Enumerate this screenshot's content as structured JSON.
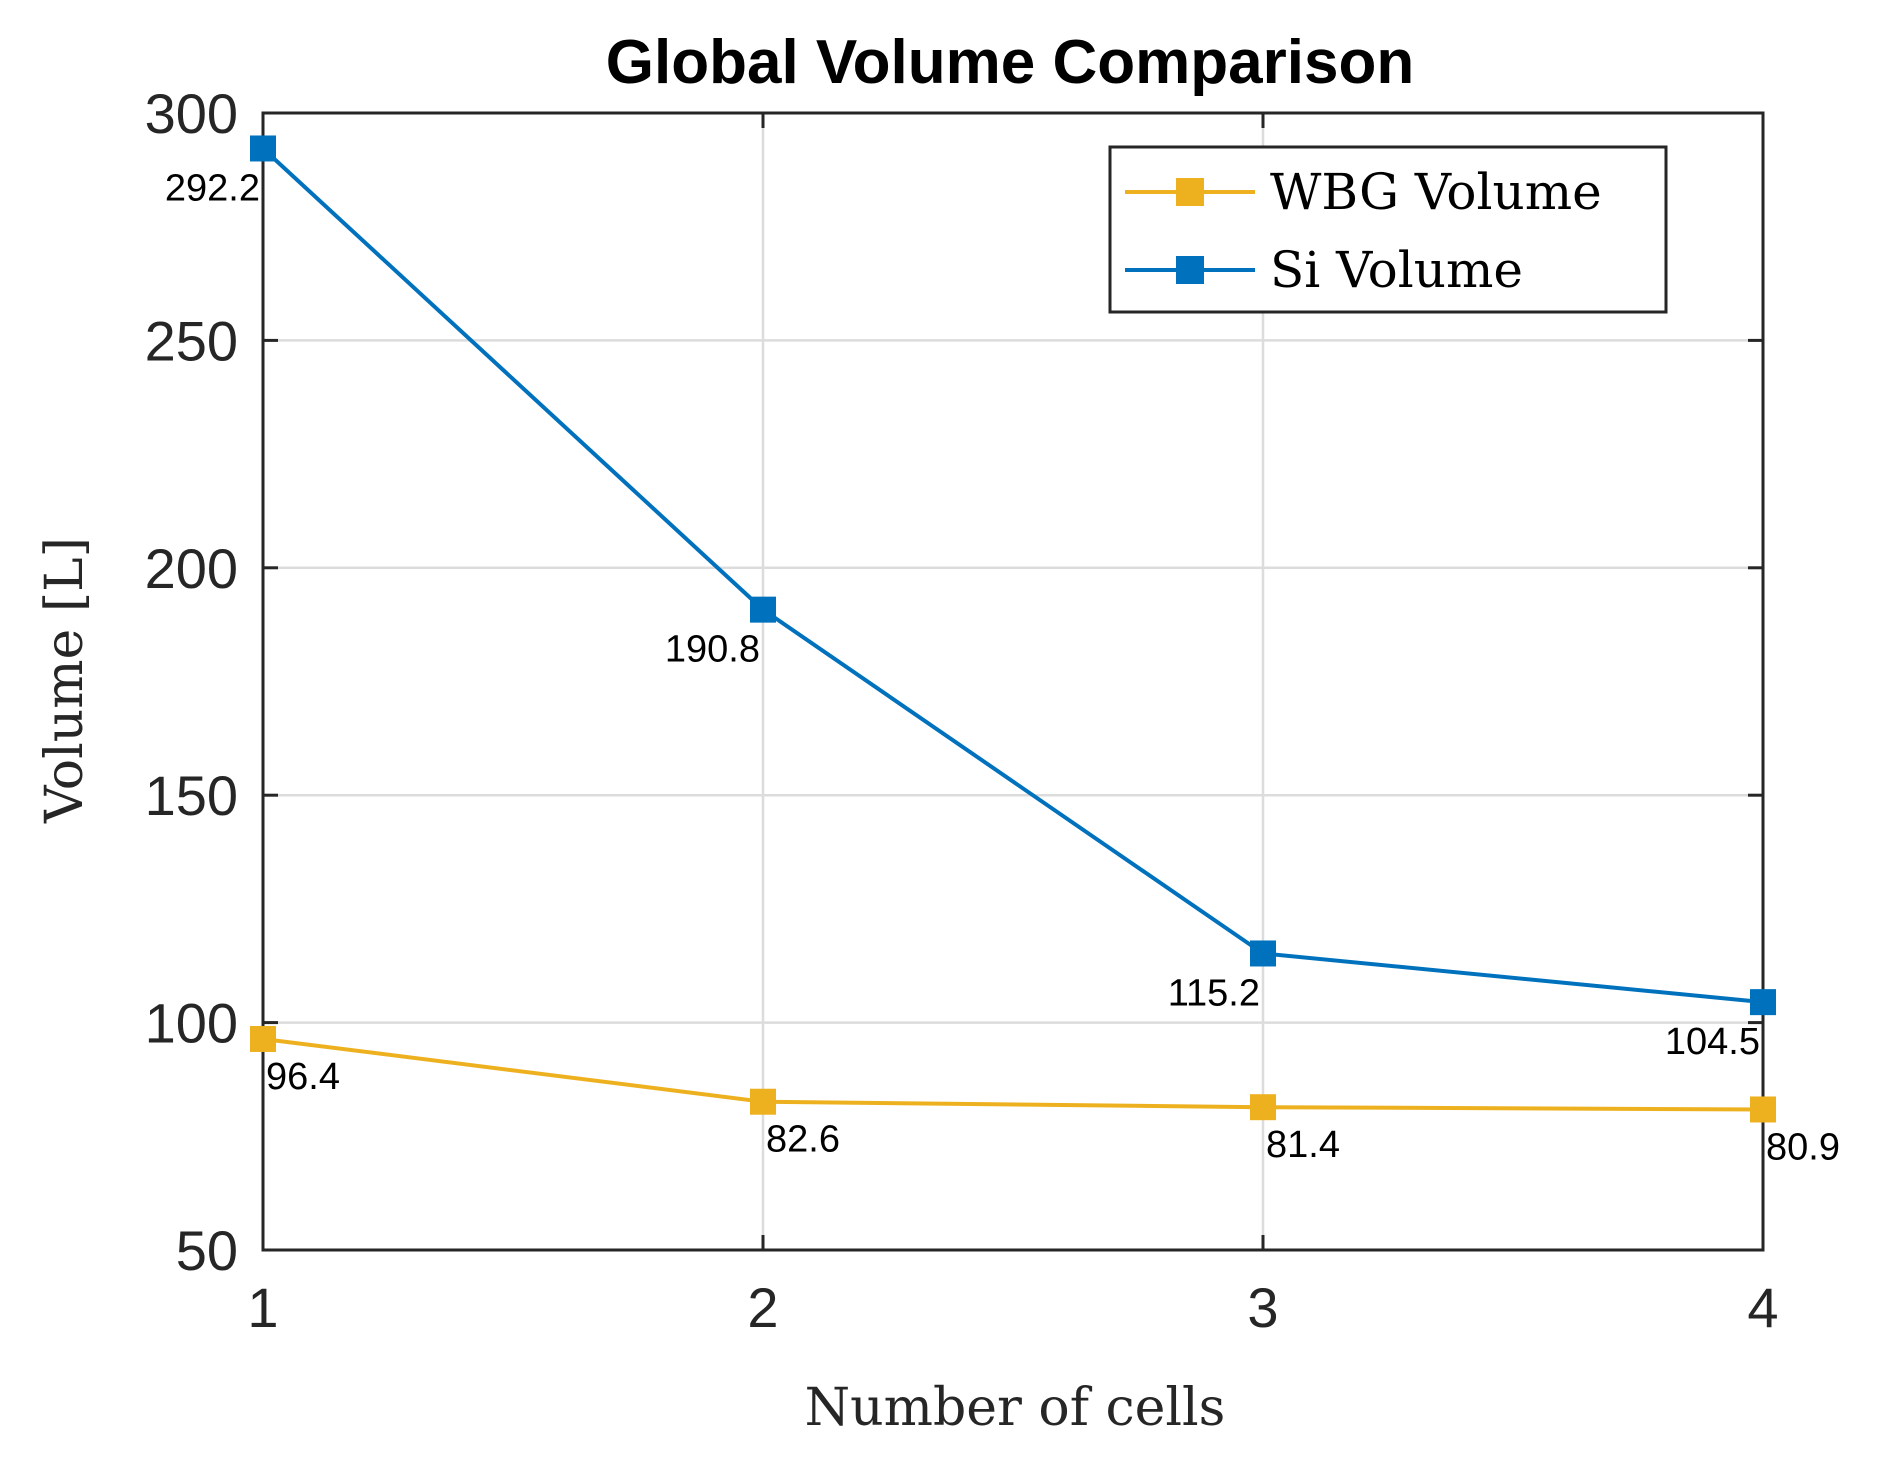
{
  "chart_data": {
    "type": "line",
    "title": "Global Volume Comparison",
    "xlabel": "Number of cells",
    "ylabel": "Volume [L]",
    "x": [
      1,
      2,
      3,
      4
    ],
    "xlim": [
      1,
      4
    ],
    "ylim": [
      50,
      300
    ],
    "xticks": [
      "1",
      "2",
      "3",
      "4"
    ],
    "yticks": [
      "50",
      "100",
      "150",
      "200",
      "250",
      "300"
    ],
    "grid": true,
    "legend": "top-right",
    "series": [
      {
        "name": "WBG Volume",
        "color": "#EDB120",
        "marker": "square",
        "values": [
          96.4,
          82.6,
          81.4,
          80.9
        ],
        "labels": [
          "96.4",
          "82.6",
          "81.4",
          "80.9"
        ]
      },
      {
        "name": "Si Volume",
        "color": "#0072BD",
        "marker": "square",
        "values": [
          292.2,
          190.8,
          115.2,
          104.5
        ],
        "labels": [
          "292.2",
          "190.8",
          "115.2",
          "104.5"
        ]
      }
    ]
  }
}
